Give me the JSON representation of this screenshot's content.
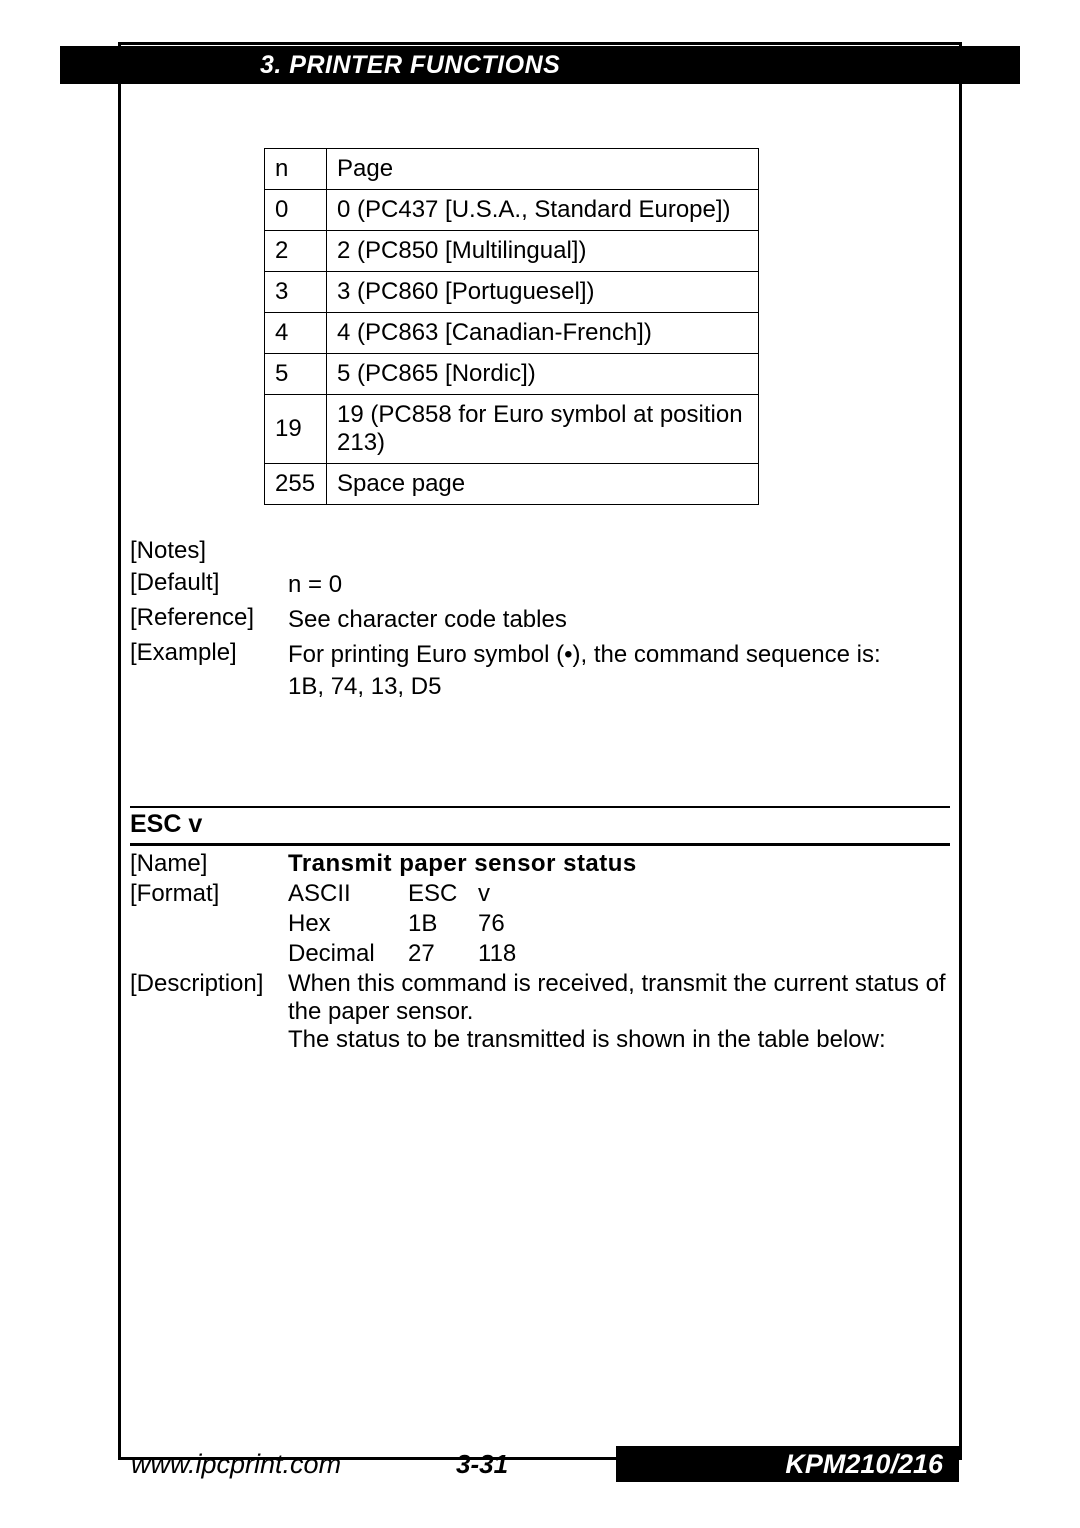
{
  "header": {
    "title": "3. PRINTER FUNCTIONS"
  },
  "code_table": {
    "columns": [
      "n",
      "Page"
    ],
    "rows": [
      [
        "n",
        "Page"
      ],
      [
        "0",
        "0 (PC437 [U.S.A., Standard Europe])"
      ],
      [
        "2",
        "2 (PC850 [Multilingual])"
      ],
      [
        "3",
        "3 (PC860 [Portuguesel])"
      ],
      [
        "4",
        "4 (PC863 [Canadian-French])"
      ],
      [
        "5",
        "5 (PC865 [Nordic])"
      ],
      [
        "19",
        "19 (PC858 for Euro symbol at position 213)"
      ],
      [
        "255",
        "Space page"
      ]
    ]
  },
  "defs": {
    "notes_label": "[Notes]",
    "default_label": "[Default]",
    "default_value": "n = 0",
    "reference_label": "[Reference]",
    "reference_value": "See character code tables",
    "example_label": "[Example]",
    "example_value_1": "For printing Euro symbol (•), the command sequence is:",
    "example_value_2": "1B, 74, 13, D5"
  },
  "section": {
    "title": "ESC v"
  },
  "cmd": {
    "name_label": "[Name]",
    "name_value": "Transmit paper sensor status",
    "format_label": "[Format]",
    "format": {
      "ascii_label": "ASCII",
      "ascii_v1": "ESC",
      "ascii_v2": "v",
      "hex_label": "Hex",
      "hex_v1": "1B",
      "hex_v2": "76",
      "dec_label": "Decimal",
      "dec_v1": "27",
      "dec_v2": "118"
    },
    "desc_label": "[Description]",
    "desc_1": "When this command is received, transmit the current status of the paper sensor.",
    "desc_2": "The status to be transmitted is shown in the table below:"
  },
  "footer": {
    "left": "www.ipcprint.com",
    "mid": "3-31",
    "right": "KPM210/216"
  }
}
